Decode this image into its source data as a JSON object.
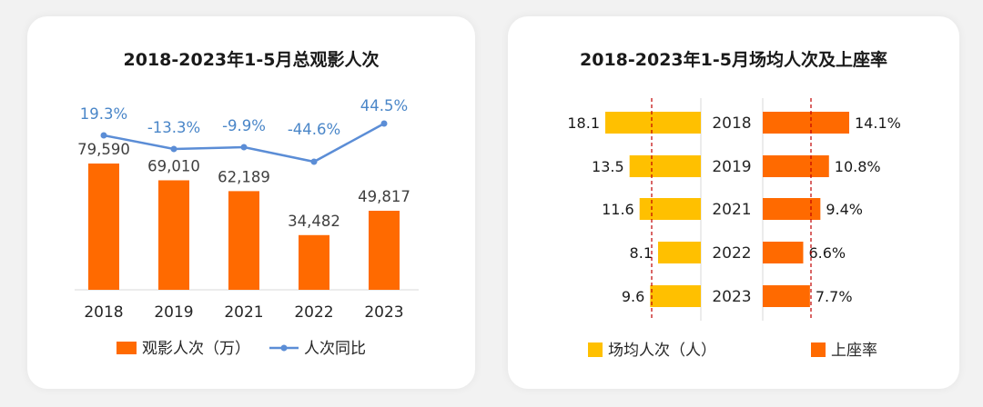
{
  "colors": {
    "bar_orange": "#ff6a00",
    "line_blue": "#5b8dd6",
    "bar_yellow": "#ffc000",
    "ref_line_red": "#c00000"
  },
  "chart_data": [
    {
      "type": "bar",
      "title": "2018-2023年1-5月总观影人次",
      "categories": [
        "2018",
        "2019",
        "2021",
        "2022",
        "2023"
      ],
      "series": [
        {
          "name": "观影人次（万）",
          "kind": "bar",
          "values": [
            79590,
            69010,
            62189,
            34482,
            49817
          ],
          "labels": [
            "79,590",
            "69,010",
            "62,189",
            "34,482",
            "49,817"
          ]
        },
        {
          "name": "人次同比",
          "kind": "line",
          "values": [
            19.3,
            -13.3,
            -9.9,
            -44.6,
            44.5
          ],
          "labels": [
            "19.3%",
            "-13.3%",
            "-9.9%",
            "-44.6%",
            "44.5%"
          ]
        }
      ],
      "legend": "bottom"
    },
    {
      "type": "bar",
      "orientation": "horizontal-butterfly",
      "title": "2018-2023年1-5月场均人次及上座率",
      "categories": [
        "2018",
        "2019",
        "2021",
        "2022",
        "2023"
      ],
      "series": [
        {
          "name": "场均人次（人）",
          "side": "left",
          "values": [
            18.1,
            13.5,
            11.6,
            8.1,
            9.6
          ],
          "labels": [
            "18.1",
            "13.5",
            "11.6",
            "8.1",
            "9.6"
          ]
        },
        {
          "name": "上座率",
          "side": "right",
          "values": [
            14.1,
            10.8,
            9.4,
            6.6,
            7.7
          ],
          "labels": [
            "14.1%",
            "10.8%",
            "9.4%",
            "6.6%",
            "7.7%"
          ]
        }
      ],
      "legend": "bottom"
    }
  ]
}
